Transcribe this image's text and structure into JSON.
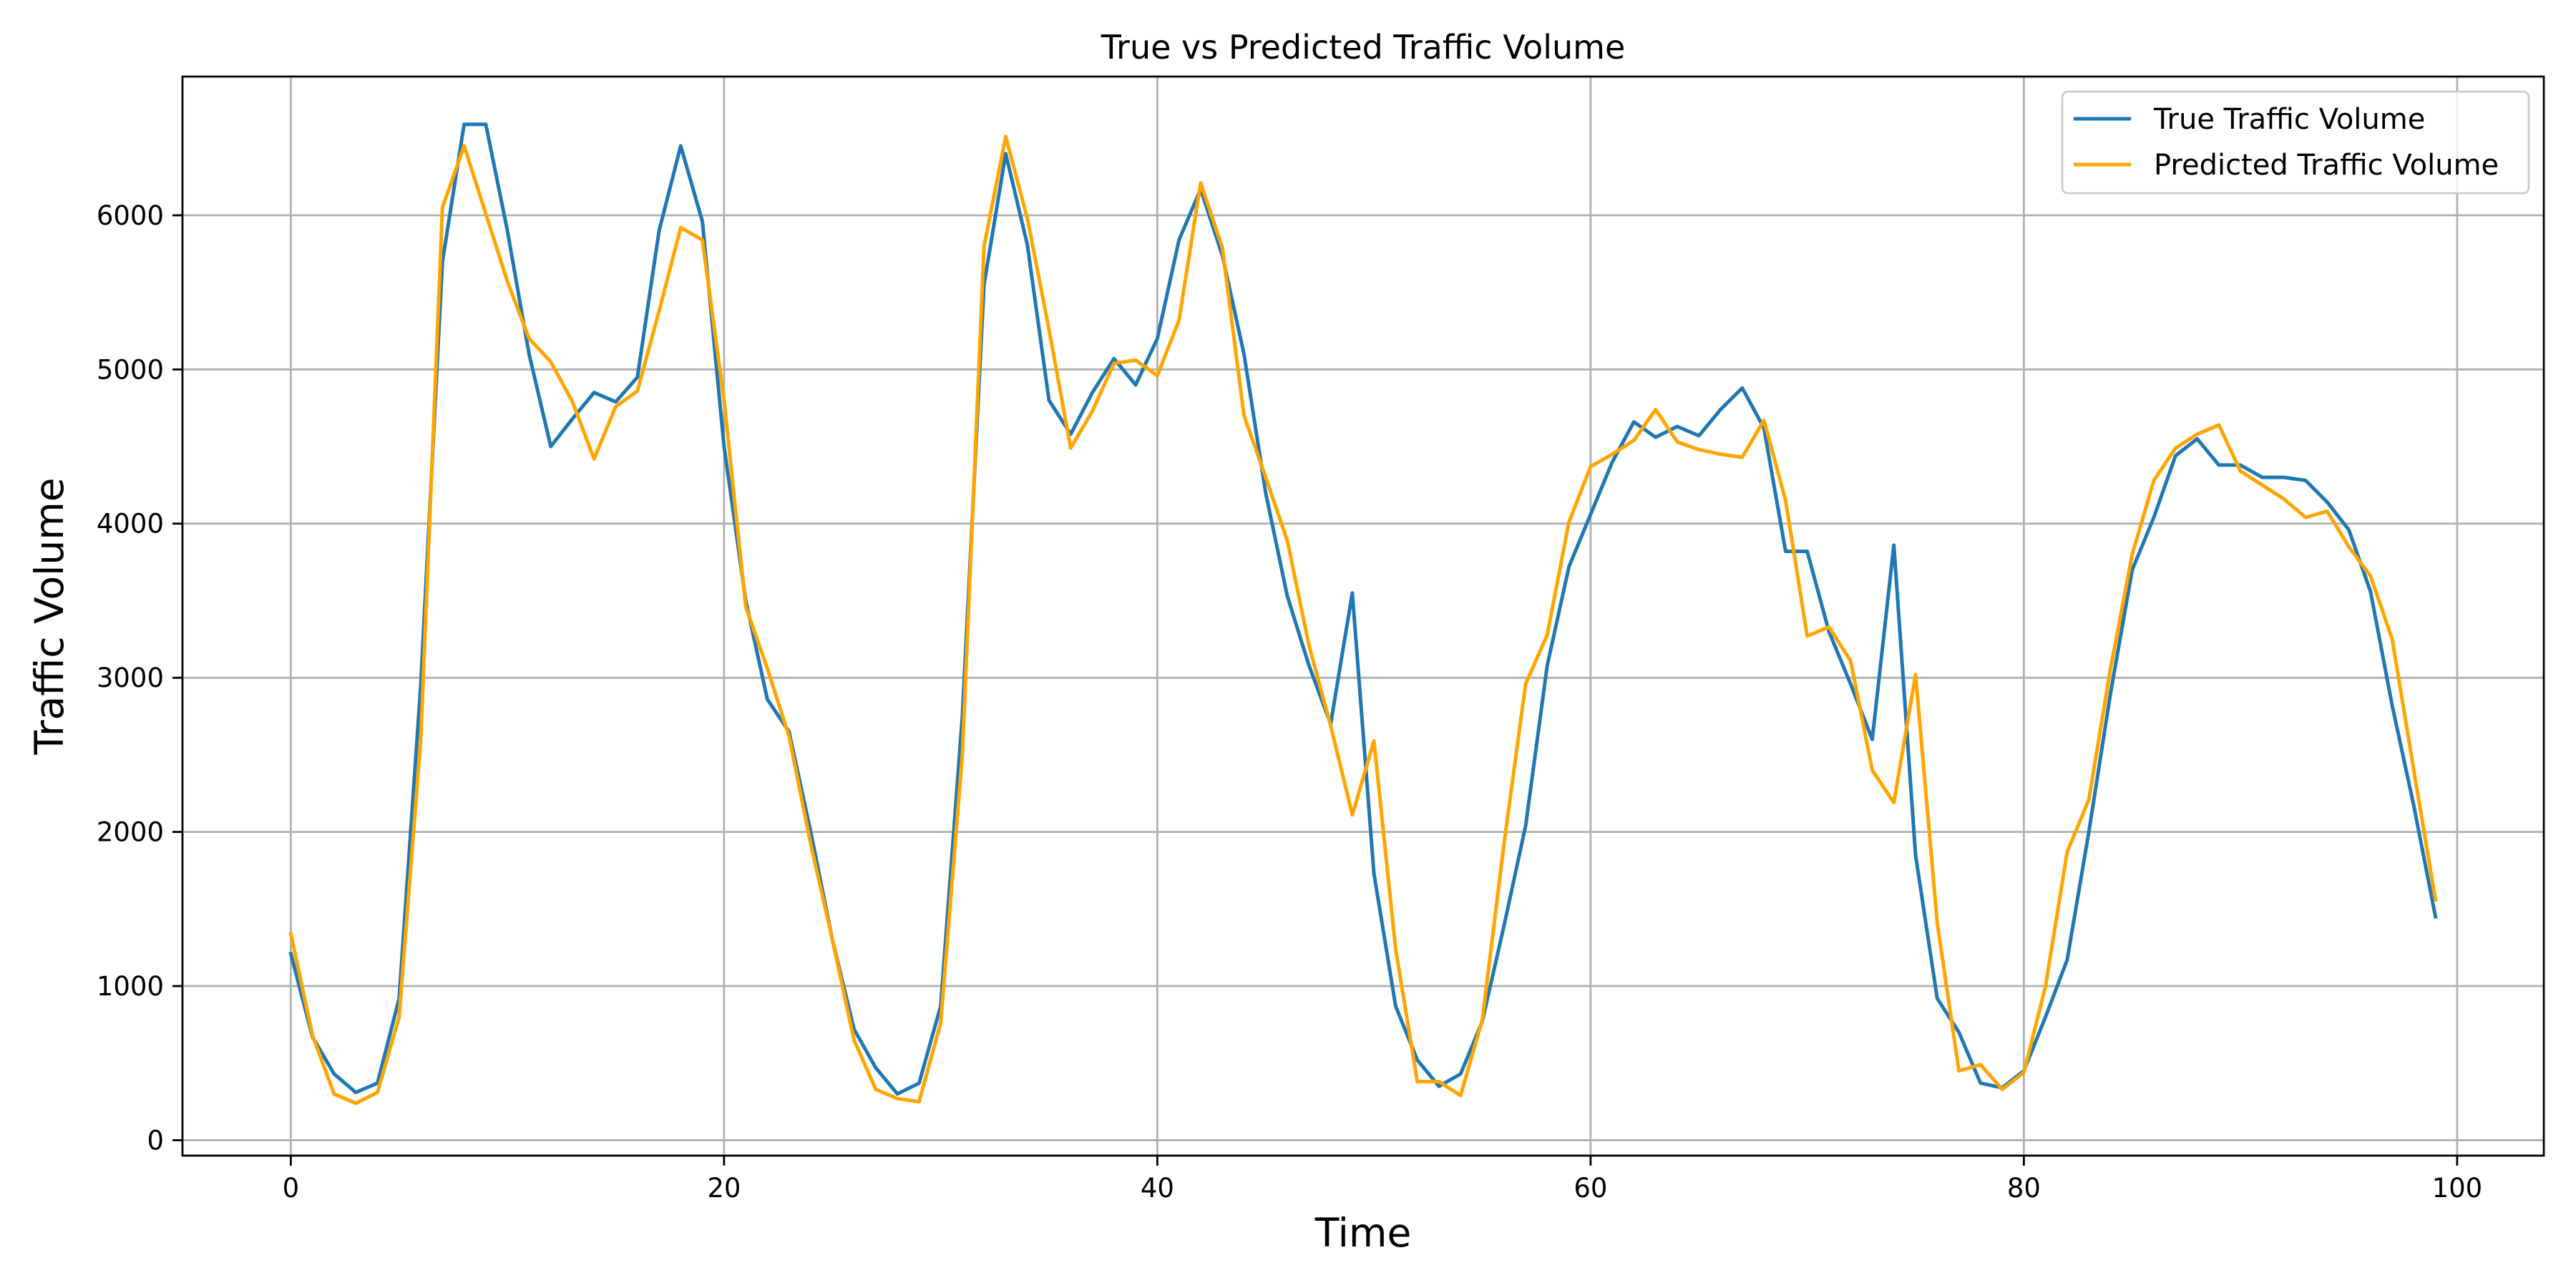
{
  "chart_data": {
    "type": "line",
    "title": "True vs Predicted Traffic Volume",
    "xlabel": "Time",
    "ylabel": "Traffic Volume",
    "xlim": [
      -5,
      104
    ],
    "ylim": [
      -100,
      6900
    ],
    "xticks": [
      0,
      20,
      40,
      60,
      80,
      100
    ],
    "yticks": [
      0,
      1000,
      2000,
      3000,
      4000,
      5000,
      6000
    ],
    "grid": true,
    "legend_position": "top-right",
    "x": [
      0,
      1,
      2,
      3,
      4,
      5,
      6,
      7,
      8,
      9,
      10,
      11,
      12,
      13,
      14,
      15,
      16,
      17,
      18,
      19,
      20,
      21,
      22,
      23,
      24,
      25,
      26,
      27,
      28,
      29,
      30,
      31,
      32,
      33,
      34,
      35,
      36,
      37,
      38,
      39,
      40,
      41,
      42,
      43,
      44,
      45,
      46,
      47,
      48,
      49,
      50,
      51,
      52,
      53,
      54,
      55,
      56,
      57,
      58,
      59,
      60,
      61,
      62,
      63,
      64,
      65,
      66,
      67,
      68,
      69,
      70,
      71,
      72,
      73,
      74,
      75,
      76,
      77,
      78,
      79,
      80,
      81,
      82,
      83,
      84,
      85,
      86,
      87,
      88,
      89,
      90,
      91,
      92,
      93,
      94,
      95,
      96,
      97,
      98,
      99
    ],
    "series": [
      {
        "name": "True Traffic Volume",
        "color": "#1f77b4",
        "values": [
          1210,
          670,
          430,
          310,
          370,
          920,
          2950,
          5700,
          6590,
          6590,
          5900,
          5100,
          4500,
          4680,
          4850,
          4790,
          4950,
          5900,
          6450,
          5960,
          4500,
          3500,
          2860,
          2650,
          2000,
          1300,
          720,
          470,
          300,
          370,
          870,
          2750,
          5550,
          6400,
          5810,
          4800,
          4580,
          4850,
          5070,
          4900,
          5200,
          5840,
          6170,
          5740,
          5100,
          4200,
          3530,
          3080,
          2700,
          3550,
          1730,
          870,
          520,
          350,
          430,
          770,
          1390,
          2040,
          3080,
          3720,
          4060,
          4400,
          4660,
          4560,
          4630,
          4570,
          4740,
          4880,
          4620,
          3820,
          3820,
          3300,
          2960,
          2600,
          3860,
          1850,
          920,
          700,
          370,
          340,
          450,
          800,
          1170,
          2000,
          2900,
          3700,
          4040,
          4440,
          4550,
          4380,
          4380,
          4300,
          4300,
          4280,
          4140,
          3960,
          3560,
          2820,
          2170,
          1450
        ]
      },
      {
        "name": "Predicted Traffic Volume",
        "color": "#ffa500",
        "values": [
          1340,
          680,
          300,
          240,
          310,
          800,
          2600,
          6050,
          6450,
          6010,
          5570,
          5200,
          5050,
          4790,
          4420,
          4760,
          4860,
          5380,
          5920,
          5840,
          4800,
          3460,
          3060,
          2620,
          1920,
          1300,
          650,
          330,
          270,
          250,
          760,
          2500,
          5800,
          6510,
          5980,
          5260,
          4490,
          4730,
          5040,
          5060,
          4960,
          5320,
          6210,
          5790,
          4700,
          4300,
          3890,
          3210,
          2690,
          2110,
          2590,
          1240,
          380,
          380,
          290,
          780,
          1920,
          2960,
          3280,
          4010,
          4370,
          4450,
          4540,
          4740,
          4530,
          4480,
          4450,
          4430,
          4670,
          4150,
          3270,
          3330,
          3110,
          2400,
          2190,
          3020,
          1410,
          450,
          490,
          330,
          440,
          1000,
          1870,
          2210,
          3060,
          3800,
          4280,
          4490,
          4580,
          4640,
          4340,
          4250,
          4160,
          4040,
          4080,
          3850,
          3660,
          3250,
          2400,
          1560
        ]
      }
    ]
  }
}
